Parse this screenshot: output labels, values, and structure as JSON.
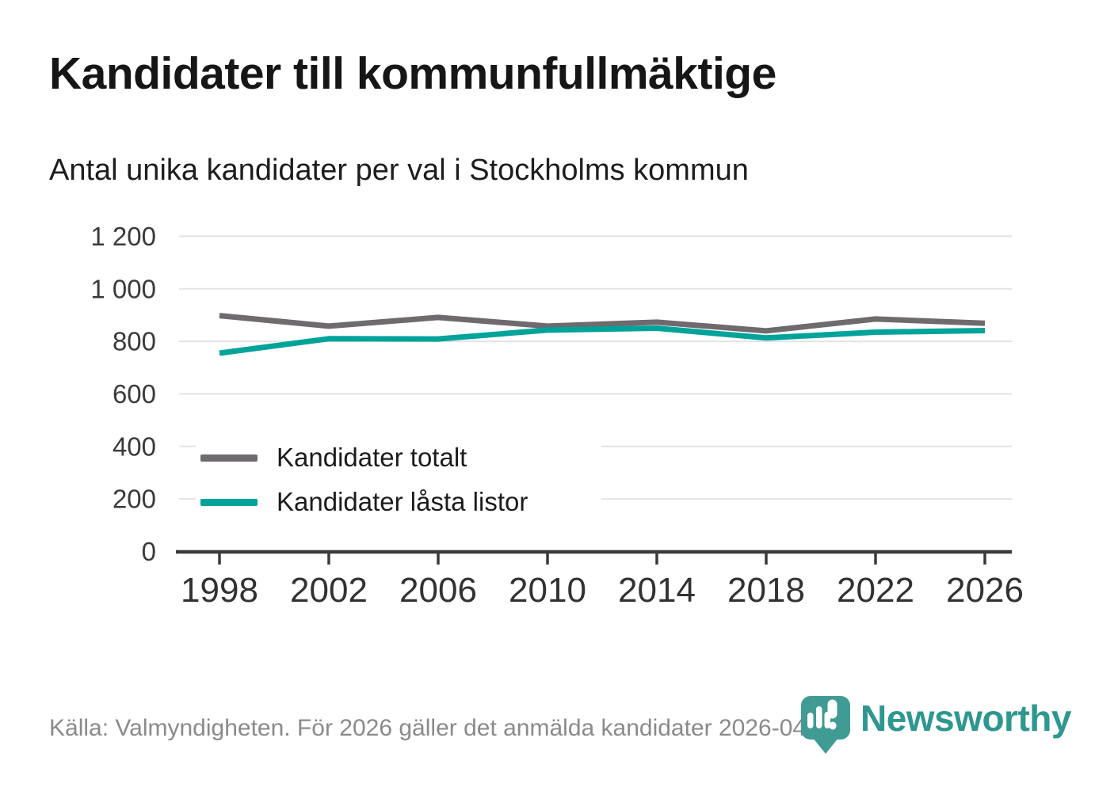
{
  "header": {
    "title": "Kandidater till kommunfullmäktige",
    "subtitle": "Antal unika kandidater per val i Stockholms kommun"
  },
  "chart_data": {
    "type": "line",
    "categories": [
      "1998",
      "2002",
      "2006",
      "2010",
      "2014",
      "2018",
      "2022",
      "2026"
    ],
    "series": [
      {
        "name": "Kandidater totalt",
        "color": "#6e6a6e",
        "values": [
          898,
          858,
          891,
          858,
          873,
          840,
          885,
          869
        ]
      },
      {
        "name": "Kandidater låsta listor",
        "color": "#00a39a",
        "values": [
          755,
          810,
          809,
          843,
          850,
          813,
          835,
          841
        ]
      }
    ],
    "title": "Kandidater till kommunfullmäktige",
    "subtitle": "Antal unika kandidater per val i Stockholms kommun",
    "xlabel": "",
    "ylabel": "",
    "ylim": [
      0,
      1200
    ],
    "yticks": [
      0,
      200,
      400,
      600,
      800,
      1000,
      1200
    ],
    "ytick_labels": [
      "0",
      "200",
      "400",
      "600",
      "800",
      "1 000",
      "1 200"
    ],
    "grid": true,
    "legend_position": "inside-left-middle"
  },
  "footer": {
    "source": "Källa: Valmyndigheten. För 2026 gäller det anmälda kandidater 2026-04-10.",
    "brand": "Newsworthy"
  },
  "icons": {
    "logo": "newsworthy-pin-barchart-icon"
  },
  "colors": {
    "series_total": "#6e6a6e",
    "series_locked": "#00a39a",
    "gridline": "#e3e3e3",
    "axis": "#3a3a3a",
    "text_dark": "#1a1a1a",
    "text_muted": "#8a8a8a",
    "brand_pin": "#3f9b94",
    "brand_wordmark": "#2e978f",
    "background": "#ffffff"
  }
}
